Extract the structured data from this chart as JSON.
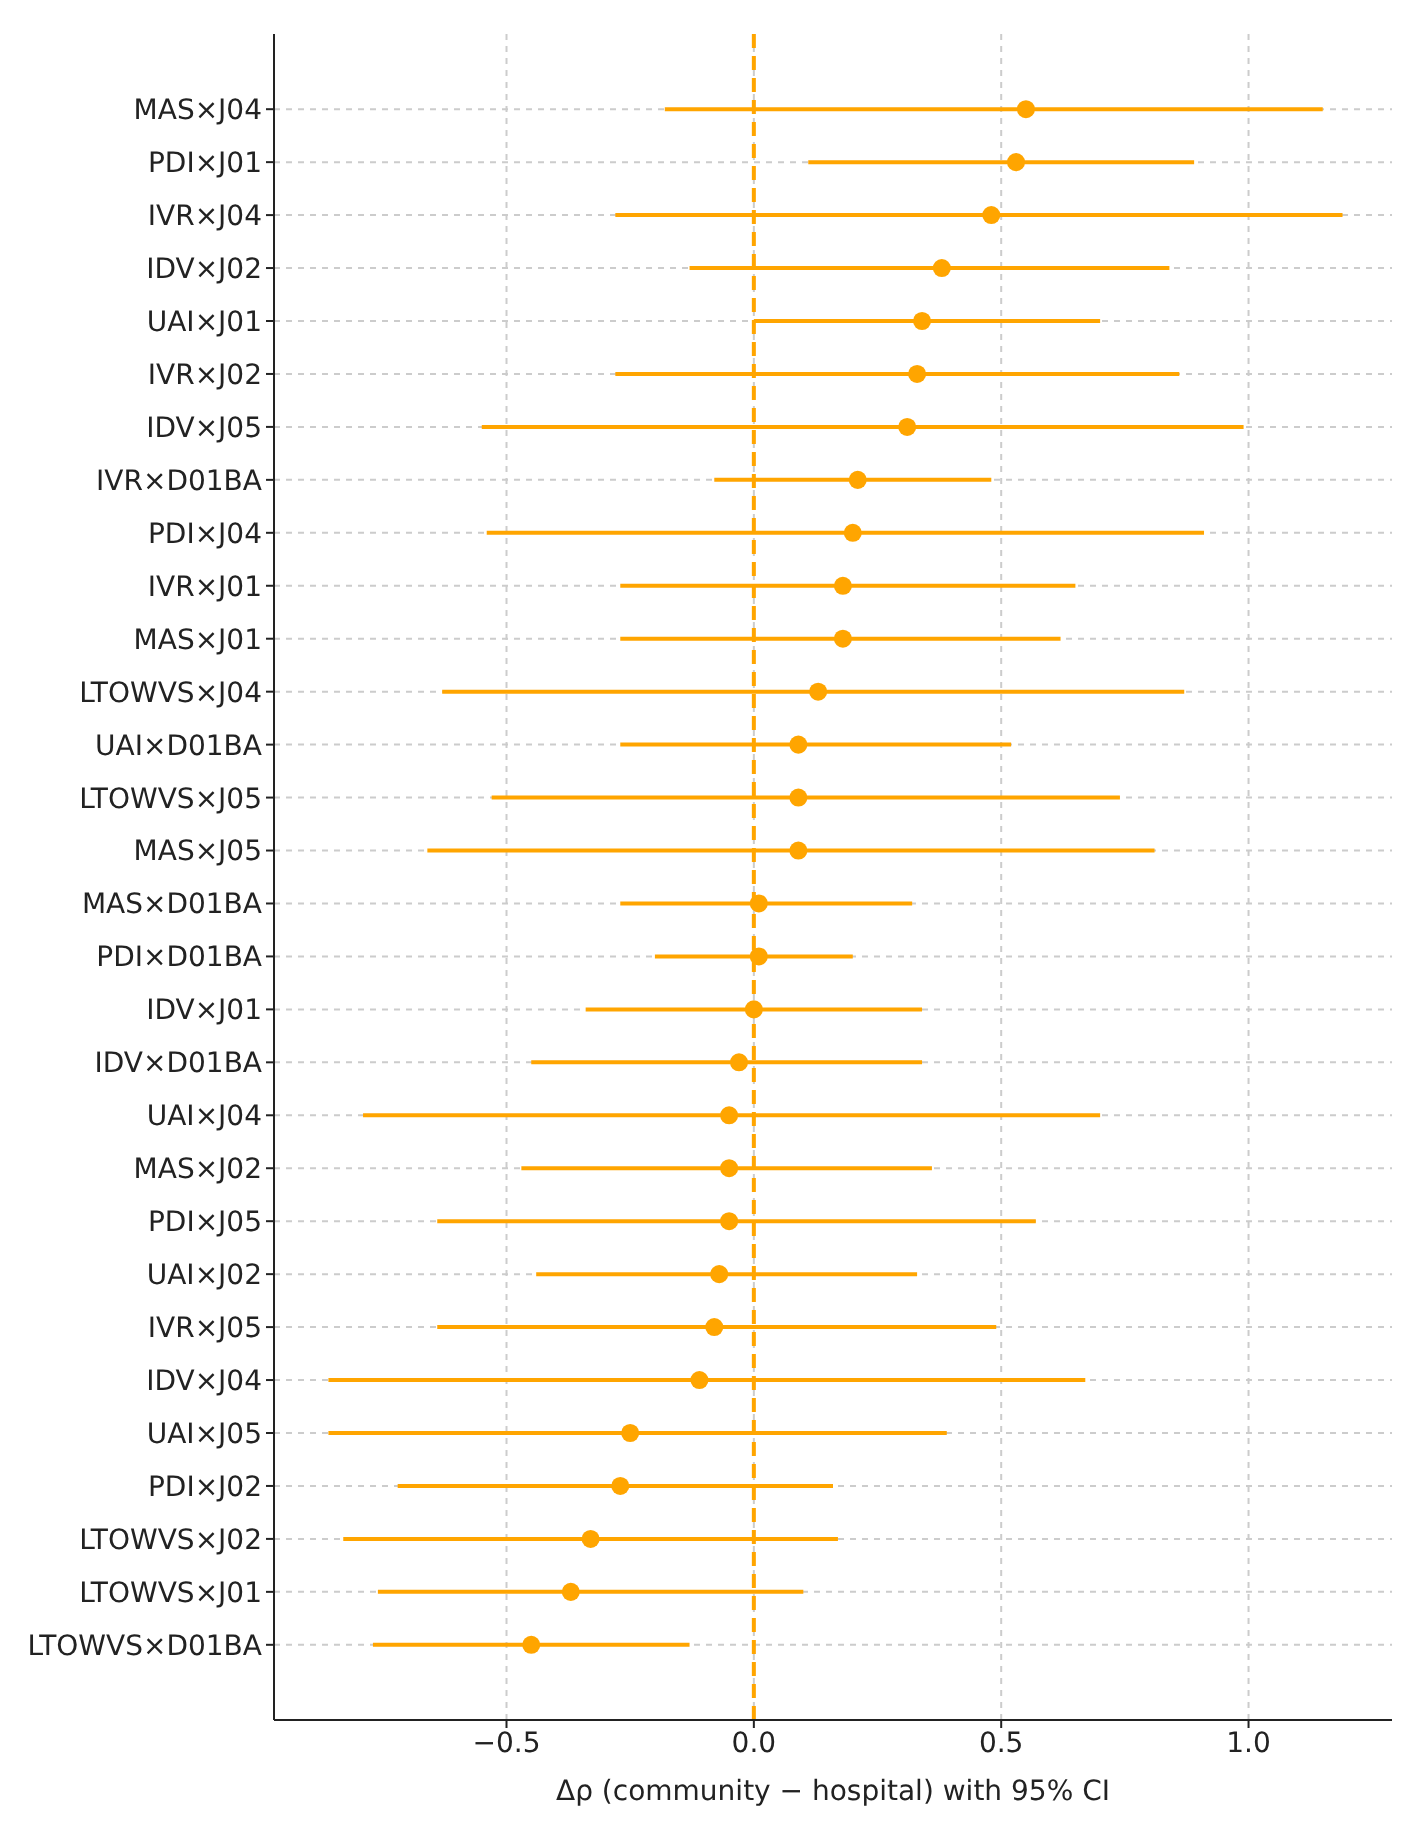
{
  "chart_data": {
    "type": "scatter",
    "xlabel": "Δρ (community − hospital) with 95% CI",
    "categories": [
      "MAS×J04",
      "PDI×J01",
      "IVR×J04",
      "IDV×J02",
      "UAI×J01",
      "IVR×J02",
      "IDV×J05",
      "IVR×D01BA",
      "PDI×J04",
      "IVR×J01",
      "MAS×J01",
      "LTOWVS×J04",
      "UAI×D01BA",
      "LTOWVS×J05",
      "MAS×J05",
      "MAS×D01BA",
      "PDI×D01BA",
      "IDV×J01",
      "IDV×D01BA",
      "UAI×J04",
      "MAS×J02",
      "PDI×J05",
      "UAI×J02",
      "IVR×J05",
      "IDV×J04",
      "UAI×J05",
      "PDI×J02",
      "LTOWVS×J02",
      "LTOWVS×J01",
      "LTOWVS×D01BA"
    ],
    "orientation": "horizontal",
    "series": [
      {
        "color": "#ffa500",
        "values": [
          0.55,
          0.53,
          0.48,
          0.38,
          0.34,
          0.33,
          0.31,
          0.21,
          0.2,
          0.18,
          0.18,
          0.13,
          0.09,
          0.09,
          0.09,
          0.01,
          0.01,
          0.0,
          -0.03,
          -0.05,
          -0.05,
          -0.05,
          -0.07,
          -0.08,
          -0.11,
          -0.25,
          -0.27,
          -0.33,
          -0.37,
          -0.45
        ],
        "errors": [
          [
            -0.18,
            1.15
          ],
          [
            0.11,
            0.89
          ],
          [
            -0.28,
            1.19
          ],
          [
            -0.13,
            0.84
          ],
          [
            0.0,
            0.7
          ],
          [
            -0.28,
            0.86
          ],
          [
            -0.55,
            0.99
          ],
          [
            -0.08,
            0.48
          ],
          [
            -0.54,
            0.91
          ],
          [
            -0.27,
            0.65
          ],
          [
            -0.27,
            0.62
          ],
          [
            -0.63,
            0.87
          ],
          [
            -0.27,
            0.52
          ],
          [
            -0.53,
            0.74
          ],
          [
            -0.66,
            0.81
          ],
          [
            -0.27,
            0.32
          ],
          [
            -0.2,
            0.2
          ],
          [
            -0.34,
            0.34
          ],
          [
            -0.45,
            0.34
          ],
          [
            -0.79,
            0.7
          ],
          [
            -0.47,
            0.36
          ],
          [
            -0.64,
            0.57
          ],
          [
            -0.44,
            0.33
          ],
          [
            -0.64,
            0.49
          ],
          [
            -0.86,
            0.67
          ],
          [
            -0.86,
            0.39
          ],
          [
            -0.72,
            0.16
          ],
          [
            -0.83,
            0.17
          ],
          [
            -0.76,
            0.1
          ],
          [
            -0.77,
            -0.13
          ]
        ]
      }
    ],
    "xlim": [
      -0.97,
      1.29
    ],
    "xticks": [
      {
        "value": -0.5,
        "label": "−0.5"
      },
      {
        "value": 0,
        "label": "0.0"
      },
      {
        "value": 0.5,
        "label": "0.5"
      },
      {
        "value": 1.0,
        "label": "1.0"
      }
    ],
    "ref_lines": [
      {
        "axis": "x",
        "value": 0,
        "color": "#ffa500",
        "line_style": "dashed"
      }
    ],
    "grid": true,
    "marker": "circle"
  }
}
